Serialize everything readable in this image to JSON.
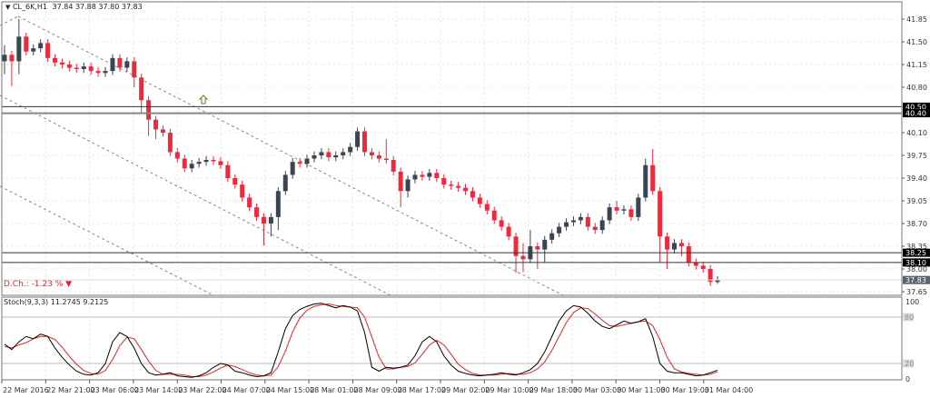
{
  "header": {
    "symbol": "CL_6K,H1",
    "ohlc_text": "37.84 37.88 37.80 37.83",
    "menu_icon": "triangle-down-icon"
  },
  "daily_change": {
    "label": "D.Ch.:",
    "value": "-1.23 %",
    "direction_icon": "triangle-down-icon",
    "color": "#f02030"
  },
  "stoch": {
    "label": "Stoch(9,3,3)",
    "k_value": "11.2745",
    "d_value": "9.2125"
  },
  "colors": {
    "bull": "#3a4452",
    "bear": "#f0283c",
    "k_line": "#000000",
    "d_line": "#ee2222"
  },
  "chart_data": [
    {
      "type": "candlestick",
      "title": "",
      "x_tick_labels": [
        "22 Mar 2016",
        "22 Mar 21:00",
        "23 Mar 06:00",
        "23 Mar 14:00",
        "23 Mar 22:00",
        "24 Mar 07:00",
        "24 Mar 15:00",
        "28 Mar 01:00",
        "28 Mar 09:00",
        "28 Mar 17:00",
        "29 Mar 02:00",
        "29 Mar 10:00",
        "29 Mar 18:00",
        "30 Mar 03:00",
        "30 Mar 11:00",
        "30 Mar 19:00",
        "31 Mar 04:00"
      ],
      "y_tick_labels": [
        "41.85",
        "41.50",
        "41.15",
        "40.80",
        "40.10",
        "39.75",
        "39.40",
        "39.05",
        "38.70",
        "38.35",
        "38.00",
        "37.65"
      ],
      "ylim": [
        37.6,
        41.95
      ],
      "grid": true,
      "open": [
        41.2,
        41.3,
        41.2,
        41.58,
        41.35,
        41.4,
        41.48,
        41.25,
        41.18,
        41.15,
        41.1,
        41.08,
        41.12,
        41.05,
        41.02,
        41.05,
        41.25,
        41.1,
        41.2,
        40.95,
        40.6,
        40.3,
        40.15,
        40.1,
        39.8,
        39.7,
        39.55,
        39.62,
        39.65,
        39.68,
        39.66,
        39.6,
        39.4,
        39.3,
        39.1,
        38.95,
        38.8,
        38.7,
        38.8,
        39.2,
        39.45,
        39.65,
        39.62,
        39.7,
        39.75,
        39.8,
        39.72,
        39.75,
        39.8,
        39.88,
        40.12,
        39.8,
        39.75,
        39.7,
        39.68,
        39.5,
        39.2,
        39.38,
        39.45,
        39.42,
        39.48,
        39.4,
        39.3,
        39.28,
        39.25,
        39.2,
        39.1,
        39.0,
        38.9,
        38.75,
        38.65,
        38.5,
        38.2,
        38.15,
        38.35,
        38.3,
        38.45,
        38.55,
        38.65,
        38.72,
        38.75,
        38.8,
        38.65,
        38.6,
        38.75,
        38.95,
        38.9,
        38.92,
        38.8,
        39.1,
        39.6,
        39.2,
        38.5,
        38.3,
        38.4,
        38.35,
        38.1,
        38.05,
        38.0,
        37.8
      ],
      "high": [
        41.45,
        41.36,
        41.85,
        41.64,
        41.46,
        41.54,
        41.54,
        41.31,
        41.24,
        41.21,
        41.16,
        41.18,
        41.18,
        41.11,
        41.11,
        41.31,
        41.31,
        41.26,
        41.26,
        41.01,
        40.66,
        40.36,
        40.21,
        40.16,
        39.86,
        39.76,
        39.68,
        39.71,
        39.74,
        39.74,
        39.72,
        39.66,
        39.46,
        39.36,
        39.16,
        39.01,
        38.86,
        38.86,
        39.26,
        39.51,
        39.71,
        39.71,
        39.76,
        39.81,
        39.86,
        39.86,
        39.81,
        39.86,
        39.94,
        40.18,
        40.18,
        39.86,
        39.81,
        40.0,
        39.74,
        39.56,
        39.44,
        39.51,
        39.51,
        39.54,
        39.54,
        39.46,
        39.36,
        39.34,
        39.31,
        39.26,
        39.16,
        39.06,
        38.96,
        38.81,
        38.71,
        38.56,
        38.4,
        38.6,
        38.41,
        38.51,
        38.61,
        38.71,
        38.78,
        38.81,
        38.86,
        38.86,
        38.71,
        38.81,
        39.01,
        39.05,
        38.98,
        38.98,
        39.16,
        39.7,
        39.85,
        39.26,
        38.56,
        38.46,
        38.46,
        38.41,
        38.16,
        38.11,
        38.06,
        37.89
      ],
      "low": [
        41.0,
        40.82,
        41.0,
        41.29,
        41.29,
        41.34,
        41.19,
        41.12,
        41.09,
        41.04,
        41.02,
        41.02,
        40.99,
        40.96,
        40.96,
        40.99,
        41.04,
        41.04,
        40.8,
        40.4,
        40.05,
        40.0,
        40.04,
        39.74,
        39.64,
        39.49,
        39.49,
        39.56,
        39.59,
        39.6,
        39.54,
        39.34,
        39.24,
        39.04,
        38.89,
        38.74,
        38.36,
        38.5,
        38.6,
        39.14,
        39.39,
        39.56,
        39.56,
        39.64,
        39.69,
        39.66,
        39.66,
        39.69,
        39.74,
        39.82,
        39.74,
        39.69,
        39.64,
        39.62,
        39.44,
        38.95,
        39.1,
        39.32,
        39.36,
        39.36,
        39.34,
        39.24,
        39.22,
        39.19,
        39.14,
        39.04,
        38.94,
        38.84,
        38.69,
        38.59,
        38.44,
        37.94,
        37.95,
        38.09,
        38.0,
        38.1,
        38.39,
        38.49,
        38.59,
        38.66,
        38.69,
        38.59,
        38.54,
        38.54,
        38.69,
        38.84,
        38.84,
        38.74,
        38.74,
        39.04,
        39.14,
        38.1,
        38.0,
        38.24,
        38.2,
        38.04,
        37.99,
        37.94,
        37.74,
        37.77
      ],
      "close": [
        41.3,
        41.2,
        41.58,
        41.35,
        41.4,
        41.48,
        41.25,
        41.18,
        41.15,
        41.1,
        41.08,
        41.12,
        41.05,
        41.02,
        41.05,
        41.25,
        41.1,
        41.2,
        40.95,
        40.6,
        40.3,
        40.15,
        40.1,
        39.8,
        39.7,
        39.55,
        39.62,
        39.65,
        39.68,
        39.66,
        39.6,
        39.4,
        39.3,
        39.1,
        38.95,
        38.8,
        38.7,
        38.8,
        39.2,
        39.45,
        39.65,
        39.62,
        39.7,
        39.75,
        39.8,
        39.72,
        39.75,
        39.8,
        39.88,
        40.12,
        39.8,
        39.75,
        39.7,
        39.68,
        39.5,
        39.2,
        39.38,
        39.45,
        39.42,
        39.48,
        39.4,
        39.3,
        39.28,
        39.25,
        39.2,
        39.1,
        39.0,
        38.9,
        38.75,
        38.65,
        38.5,
        38.2,
        38.15,
        38.35,
        38.3,
        38.45,
        38.55,
        38.65,
        38.72,
        38.75,
        38.8,
        38.65,
        38.6,
        38.75,
        38.95,
        38.9,
        38.92,
        38.8,
        39.1,
        39.6,
        39.2,
        38.5,
        38.3,
        38.4,
        38.35,
        38.1,
        38.05,
        38.0,
        37.8,
        37.83
      ],
      "horizontal_levels": [
        {
          "value": "40.50",
          "color": "#333333"
        },
        {
          "value": "40.40",
          "color": "#888888"
        },
        {
          "value": "38.25",
          "color": "#333333"
        },
        {
          "value": "38.10",
          "color": "#333333"
        }
      ],
      "current_price": "37.83",
      "annotations": [
        {
          "type": "arrow-up-icon"
        }
      ]
    },
    {
      "type": "line",
      "title": "Stoch(9,3,3)",
      "ylim": [
        0,
        100
      ],
      "y_tick_labels": [
        "100",
        "80",
        "20",
        "0"
      ],
      "series": [
        {
          "values": [
            45,
            38,
            48,
            55,
            52,
            58,
            55,
            40,
            28,
            18,
            10,
            6,
            5,
            8,
            20,
            48,
            60,
            55,
            40,
            20,
            8,
            5,
            6,
            8,
            4,
            3,
            2,
            4,
            8,
            15,
            20,
            18,
            10,
            8,
            5,
            3,
            4,
            8,
            35,
            65,
            82,
            90,
            94,
            97,
            98,
            95,
            92,
            95,
            93,
            88,
            60,
            15,
            10,
            15,
            14,
            15,
            18,
            30,
            48,
            55,
            48,
            30,
            18,
            10,
            7,
            5,
            4,
            5,
            6,
            8,
            6,
            5,
            8,
            12,
            20,
            35,
            55,
            75,
            88,
            95,
            93,
            85,
            75,
            68,
            65,
            70,
            75,
            72,
            74,
            78,
            55,
            20,
            10,
            8,
            8,
            6,
            4,
            5,
            8,
            11.27
          ]
        },
        {
          "values": [
            42,
            40,
            44,
            47,
            52,
            55,
            55,
            51,
            41,
            29,
            19,
            11,
            7,
            6,
            11,
            25,
            43,
            54,
            52,
            38,
            23,
            11,
            6,
            6,
            6,
            5,
            3,
            3,
            5,
            9,
            14,
            18,
            16,
            12,
            8,
            5,
            4,
            5,
            16,
            36,
            61,
            79,
            89,
            94,
            96,
            97,
            95,
            94,
            93,
            92,
            80,
            54,
            28,
            13,
            13,
            15,
            16,
            21,
            32,
            44,
            50,
            44,
            32,
            19,
            12,
            7,
            5,
            5,
            5,
            6,
            7,
            6,
            6,
            8,
            13,
            22,
            37,
            55,
            73,
            86,
            92,
            91,
            84,
            76,
            69,
            68,
            70,
            72,
            74,
            75,
            69,
            51,
            28,
            13,
            9,
            7,
            6,
            5,
            6,
            9.21
          ]
        }
      ]
    }
  ]
}
